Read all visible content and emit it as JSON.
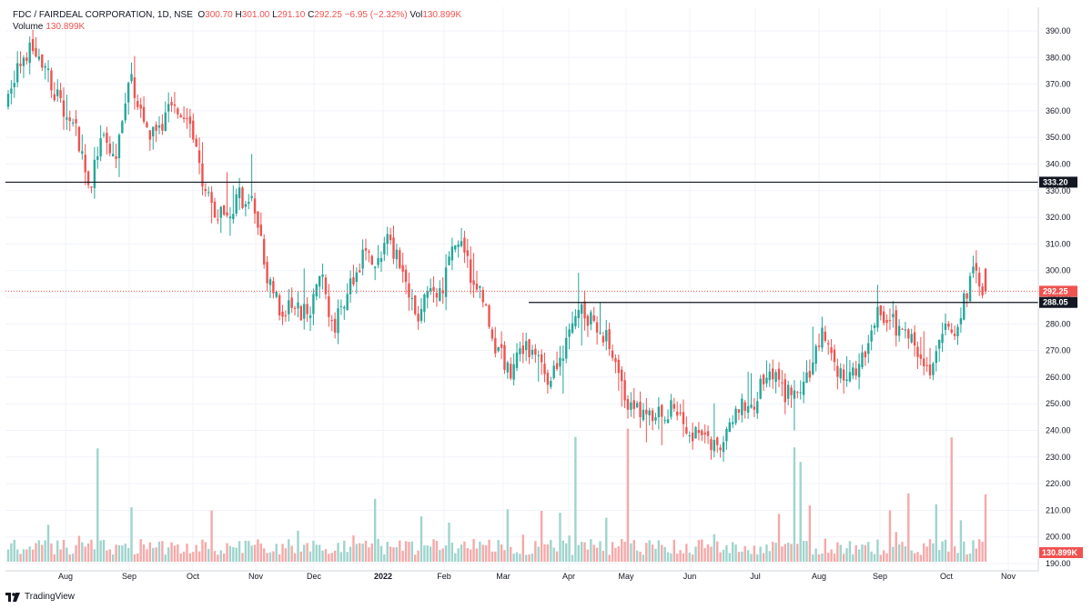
{
  "header": {
    "symbol": "FDC / FAIRDEAL CORPORATION, 1D, NSE",
    "open_label": "O",
    "open": "300.70",
    "high_label": "H",
    "high": "301.00",
    "low_label": "L",
    "low": "291.10",
    "close_label": "C",
    "close": "292.25",
    "change": "−6.95 (−2.32%)",
    "vol_label": "Vol",
    "vol": "130.899K",
    "volume_label": "Volume",
    "volume_value": "130.899K"
  },
  "brand": {
    "name": "TradingView"
  },
  "colors": {
    "up": "#26a69a",
    "down": "#ef5350",
    "up_vol": "#9fd4cd",
    "down_vol": "#f6a9a9",
    "line": "#131722",
    "badge_dark": "#131722",
    "badge_red": "#ef5350"
  },
  "chart_data": {
    "type": "candlestick",
    "title": "FDC / FAIRDEAL CORPORATION, 1D, NSE",
    "ylim": [
      190,
      395
    ],
    "yticks": [
      190,
      200,
      210,
      220,
      230,
      240,
      250,
      260,
      270,
      280,
      290,
      300,
      310,
      320,
      330,
      340,
      350,
      360,
      370,
      380,
      390
    ],
    "ytick_labels": [
      "190.00",
      "200.00",
      "210.00",
      "220.00",
      "230.00",
      "240.00",
      "250.00",
      "260.00",
      "270.00",
      "280.00",
      "290.00",
      "300.00",
      "310.00",
      "320.00",
      "330.00",
      "340.00",
      "350.00",
      "360.00",
      "370.00",
      "380.00",
      "390.00"
    ],
    "xticks": [
      "Aug",
      "Sep",
      "Oct",
      "Nov",
      "Dec",
      "2022",
      "Feb",
      "Mar",
      "Apr",
      "May",
      "Jun",
      "Jul",
      "Aug",
      "Sep",
      "Oct",
      "Nov"
    ],
    "horizontal_lines": [
      {
        "price": 333.2,
        "label": "333.20",
        "start": "full"
      },
      {
        "price": 288.05,
        "label": "288.05",
        "start": "Mar"
      }
    ],
    "last_price": {
      "price": 292.25,
      "label": "292.25"
    },
    "volume_badge": {
      "label": "130.899K"
    },
    "price_path": [
      [
        "Jul",
        363
      ],
      [
        "Jul",
        380
      ],
      [
        "Jul",
        384
      ],
      [
        "Aug",
        372
      ],
      [
        "Aug",
        360
      ],
      [
        "Aug",
        352
      ],
      [
        "Sep",
        333
      ],
      [
        "Sep",
        349
      ],
      [
        "Sep",
        344
      ],
      [
        "Sep",
        372
      ],
      [
        "Oct",
        355
      ],
      [
        "Oct",
        350
      ],
      [
        "Oct",
        362
      ],
      [
        "Oct",
        360
      ],
      [
        "Oct",
        340
      ],
      [
        "Nov",
        325
      ],
      [
        "Nov",
        318
      ],
      [
        "Nov",
        328
      ],
      [
        "Nov",
        326
      ],
      [
        "Nov",
        300
      ],
      [
        "Dec",
        285
      ],
      [
        "Dec",
        287
      ],
      [
        "Dec",
        283
      ],
      [
        "Dec",
        298
      ],
      [
        "Dec",
        279
      ],
      [
        "Dec",
        290
      ],
      [
        "2022",
        305
      ],
      [
        "2022",
        302
      ],
      [
        "2022",
        312
      ],
      [
        "2022",
        300
      ],
      [
        "2022",
        282
      ],
      [
        "2022",
        290
      ],
      [
        "Feb",
        295
      ],
      [
        "Feb",
        312
      ],
      [
        "Feb",
        300
      ],
      [
        "Feb",
        290
      ],
      [
        "Mar",
        270
      ],
      [
        "Mar",
        262
      ],
      [
        "Mar",
        272
      ],
      [
        "Mar",
        265
      ],
      [
        "Mar",
        258
      ],
      [
        "Apr",
        272
      ],
      [
        "Apr",
        285
      ],
      [
        "Apr",
        282
      ],
      [
        "Apr",
        275
      ],
      [
        "May",
        262
      ],
      [
        "May",
        246
      ],
      [
        "May",
        249
      ],
      [
        "May",
        245
      ],
      [
        "Jun",
        248
      ],
      [
        "Jun",
        240
      ],
      [
        "Jun",
        236
      ],
      [
        "Jun",
        233
      ],
      [
        "Jun",
        240
      ],
      [
        "Jul",
        248
      ],
      [
        "Jul",
        250
      ],
      [
        "Jul",
        265
      ],
      [
        "Jul",
        255
      ],
      [
        "Aug",
        252
      ],
      [
        "Aug",
        260
      ],
      [
        "Aug",
        278
      ],
      [
        "Aug",
        264
      ],
      [
        "Aug",
        260
      ],
      [
        "Sep",
        268
      ],
      [
        "Sep",
        285
      ],
      [
        "Sep",
        281
      ],
      [
        "Sep",
        276
      ],
      [
        "Oct",
        270
      ],
      [
        "Oct",
        260
      ],
      [
        "Oct",
        282
      ],
      [
        "Oct",
        278
      ],
      [
        "Oct",
        302
      ],
      [
        "Oct",
        292.25
      ]
    ]
  }
}
